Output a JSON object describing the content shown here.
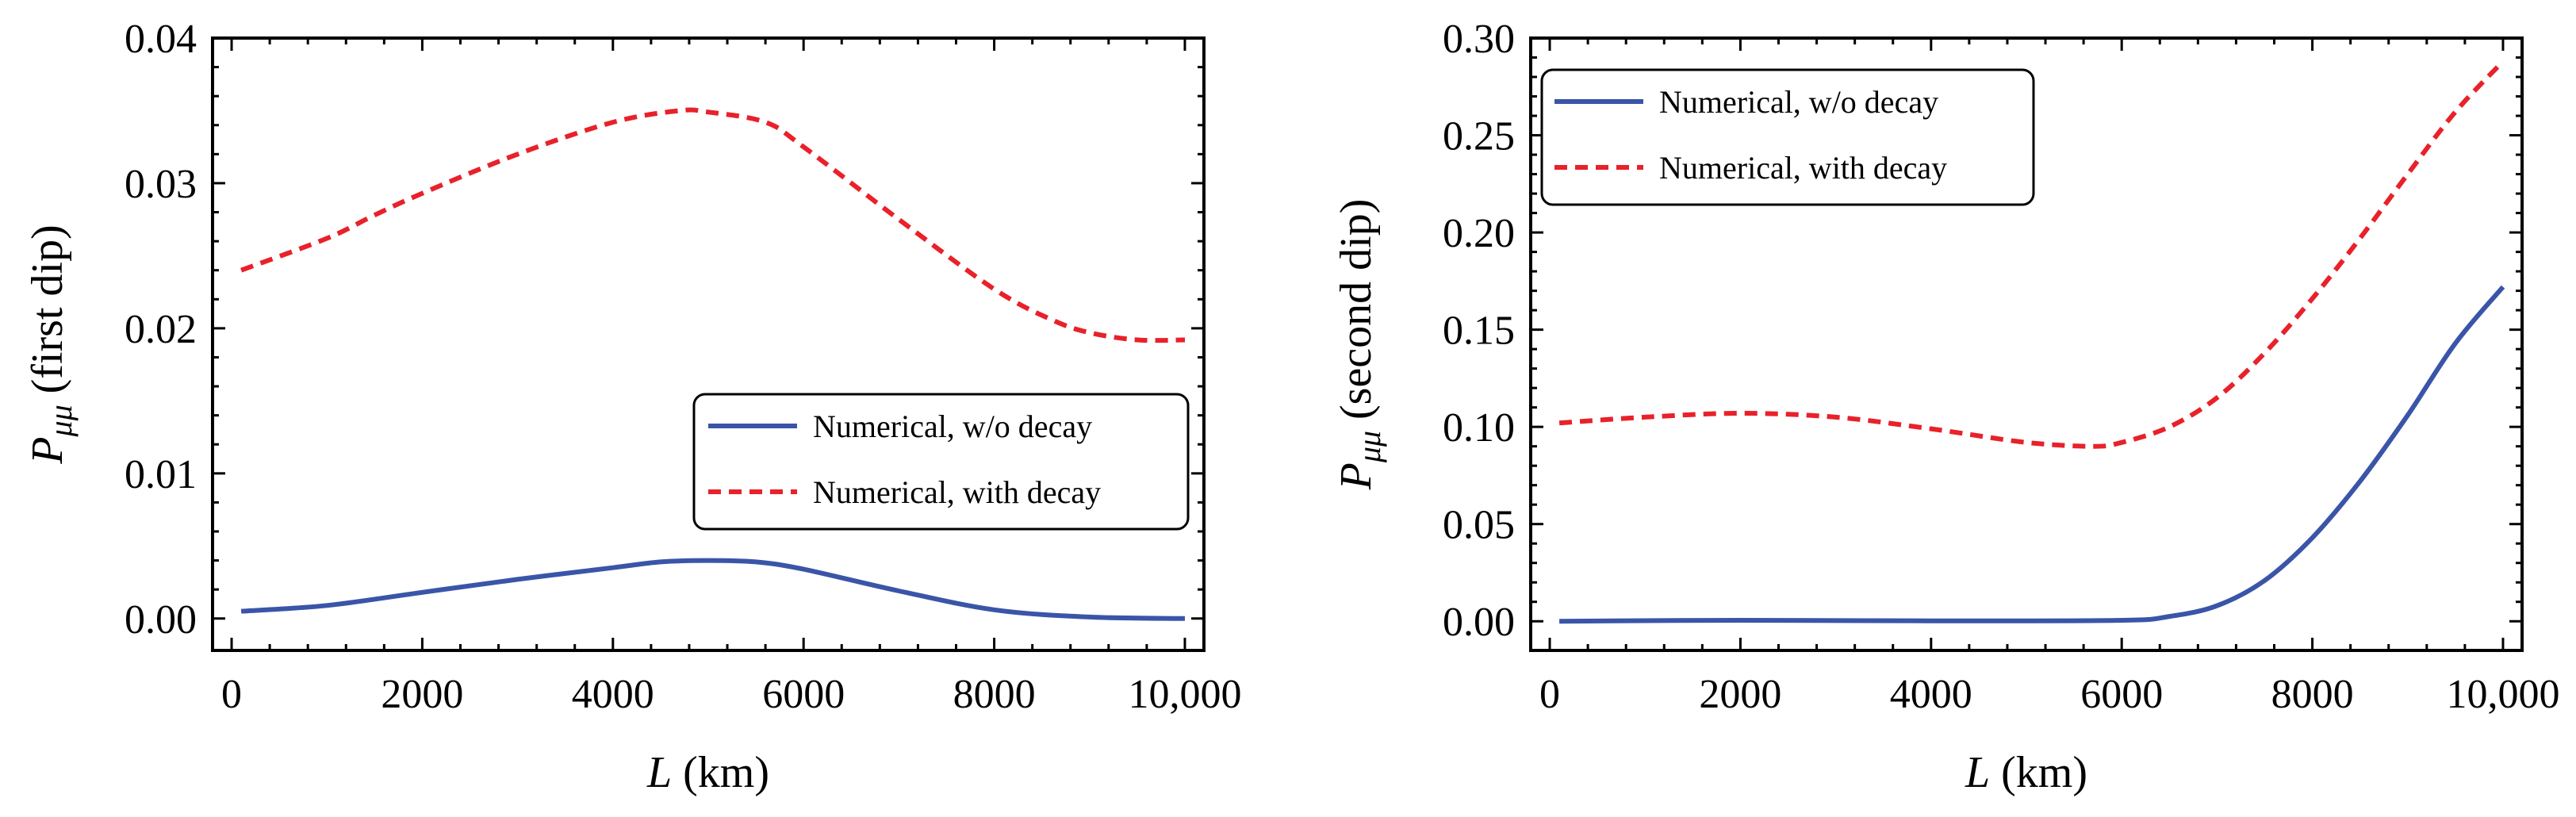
{
  "chart_data": [
    {
      "type": "line",
      "xlabel_var": "L",
      "xlabel_unit": " (km)",
      "ylabel_var": "P",
      "ylabel_sub": "μμ",
      "ylabel_text": " (first dip)",
      "xlim": [
        -200,
        10200
      ],
      "ylim": [
        -0.0022,
        0.04
      ],
      "xticks": [
        0,
        2000,
        4000,
        6000,
        8000,
        10000
      ],
      "xtick_labels": [
        "0",
        "2000",
        "4000",
        "6000",
        "8000",
        "10,000"
      ],
      "yticks": [
        0.0,
        0.01,
        0.02,
        0.03,
        0.04
      ],
      "ytick_labels": [
        "0.00",
        "0.01",
        "0.02",
        "0.03",
        "0.04"
      ],
      "legend_position": "middle-right",
      "series": [
        {
          "name": "Numerical, w/o decay",
          "color": "#3a55a8",
          "style": "solid",
          "x": [
            100,
            1000,
            2000,
            3000,
            4000,
            4500,
            5000,
            5500,
            6000,
            7000,
            8000,
            9000,
            10000
          ],
          "y": [
            0.0005,
            0.0009,
            0.0018,
            0.0027,
            0.0035,
            0.0039,
            0.004,
            0.0039,
            0.0034,
            0.0019,
            0.0006,
            0.0001,
            0.0
          ]
        },
        {
          "name": "Numerical, with decay",
          "color": "#e8212a",
          "style": "dashed",
          "x": [
            100,
            1000,
            1500,
            2000,
            3000,
            4000,
            4700,
            5000,
            5600,
            6000,
            7000,
            8000,
            8600,
            9000,
            9500,
            10000
          ],
          "y": [
            0.024,
            0.0262,
            0.0278,
            0.0293,
            0.032,
            0.0342,
            0.035,
            0.0349,
            0.0342,
            0.0325,
            0.0275,
            0.0227,
            0.0206,
            0.0197,
            0.0192,
            0.0192
          ]
        }
      ]
    },
    {
      "type": "line",
      "xlabel_var": "L",
      "xlabel_unit": " (km)",
      "ylabel_var": "P",
      "ylabel_sub": "μμ",
      "ylabel_text": " (second dip)",
      "xlim": [
        -200,
        10200
      ],
      "ylim": [
        -0.015,
        0.3
      ],
      "xticks": [
        0,
        2000,
        4000,
        6000,
        8000,
        10000
      ],
      "xtick_labels": [
        "0",
        "2000",
        "4000",
        "6000",
        "8000",
        "10,000"
      ],
      "yticks": [
        0.0,
        0.05,
        0.1,
        0.15,
        0.2,
        0.25,
        0.3
      ],
      "ytick_labels": [
        "0.00",
        "0.05",
        "0.10",
        "0.15",
        "0.20",
        "0.25",
        "0.30"
      ],
      "legend_position": "top-left",
      "series": [
        {
          "name": "Numerical, w/o decay",
          "color": "#3a55a8",
          "style": "solid",
          "x": [
            100,
            2000,
            4000,
            6000,
            6500,
            7000,
            7500,
            8000,
            8500,
            9000,
            9500,
            10000
          ],
          "y": [
            0.0,
            0.0005,
            0.0002,
            0.0005,
            0.0025,
            0.008,
            0.021,
            0.043,
            0.072,
            0.106,
            0.143,
            0.172
          ]
        },
        {
          "name": "Numerical, with decay",
          "color": "#e8212a",
          "style": "dashed",
          "x": [
            100,
            1000,
            2000,
            3000,
            4000,
            5000,
            5700,
            6000,
            6500,
            7000,
            7500,
            8000,
            8500,
            9000,
            9500,
            10000
          ],
          "y": [
            0.102,
            0.105,
            0.107,
            0.105,
            0.099,
            0.092,
            0.09,
            0.092,
            0.1,
            0.115,
            0.138,
            0.166,
            0.197,
            0.23,
            0.262,
            0.288
          ]
        }
      ]
    }
  ]
}
